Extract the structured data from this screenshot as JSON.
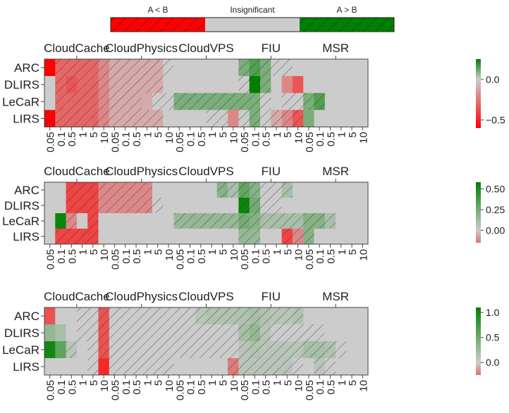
{
  "legend": {
    "items": [
      {
        "label": "A < B",
        "color": "#ff0000",
        "hatched": true
      },
      {
        "label": "Insignificant",
        "color": "#cccccc",
        "hatched": false
      },
      {
        "label": "A > B",
        "color": "#008000",
        "hatched": true
      }
    ]
  },
  "chart_data": [
    {
      "type": "heatmap",
      "rows": [
        "ARC",
        "DLIRS",
        "LeCaR",
        "LIRS"
      ],
      "group_labels": [
        "CloudCache",
        "CloudPhysics",
        "CloudVPS",
        "FIU",
        "MSR"
      ],
      "group_size": 6,
      "column_labels": [
        "0.05",
        "0.1",
        "0.5",
        "1",
        "5",
        "10",
        "0.05",
        "0.1",
        "0.5",
        "1",
        "5",
        "10",
        "0.05",
        "0.1",
        "0.5",
        "1",
        "5",
        "10",
        "0.05",
        "0.1",
        "0.5",
        "1",
        "5",
        "10",
        "0.05",
        "0.1",
        "0.5",
        "1",
        "5",
        "10"
      ],
      "colorbar": {
        "ticks": [
          0.0,
          -0.5
        ],
        "tick_labels": [
          "0.0",
          "−0.5"
        ],
        "vmin": -0.6,
        "vmax": 0.25
      },
      "values": [
        [
          -0.6,
          -0.3,
          -0.3,
          -0.3,
          -0.3,
          -0.2,
          -0.1,
          -0.1,
          -0.1,
          -0.1,
          -0.1,
          0,
          0,
          0,
          0,
          0,
          0,
          0,
          0.1,
          0.15,
          0.1,
          0,
          0,
          0,
          0,
          0,
          0,
          0,
          0,
          0
        ],
        [
          0,
          -0.3,
          -0.35,
          -0.3,
          -0.3,
          -0.2,
          -0.1,
          -0.1,
          -0.1,
          -0.1,
          -0.1,
          0,
          0,
          0,
          0,
          0,
          0,
          0,
          0,
          0.25,
          0.1,
          0,
          -0.2,
          -0.35,
          0,
          0,
          0,
          0,
          0,
          0
        ],
        [
          0,
          -0.3,
          -0.3,
          -0.3,
          -0.3,
          -0.2,
          -0.1,
          -0.1,
          -0.1,
          -0.1,
          0,
          0,
          0.1,
          0.1,
          0.1,
          0.1,
          0.1,
          0.1,
          0.1,
          0.1,
          0,
          0,
          0,
          0,
          0.1,
          0.15,
          0,
          0,
          0,
          0
        ],
        [
          -0.6,
          -0.3,
          -0.3,
          -0.3,
          -0.3,
          -0.2,
          -0.1,
          -0.1,
          -0.1,
          -0.1,
          -0.1,
          0,
          0,
          0,
          0,
          0,
          0,
          -0.2,
          0,
          0.1,
          0,
          -0.1,
          -0.2,
          -0.35,
          0.1,
          0,
          0,
          0,
          0,
          0
        ]
      ],
      "hatch": [
        [
          0,
          1,
          1,
          1,
          1,
          1,
          1,
          1,
          1,
          1,
          1,
          1,
          0,
          0,
          0,
          0,
          0,
          0,
          1,
          1,
          1,
          1,
          1,
          0,
          0,
          0,
          0,
          0,
          0,
          0
        ],
        [
          0,
          1,
          1,
          1,
          1,
          1,
          1,
          1,
          1,
          1,
          1,
          0,
          0,
          0,
          0,
          0,
          0,
          0,
          1,
          1,
          1,
          0,
          0,
          0,
          0,
          0,
          0,
          0,
          0,
          0
        ],
        [
          0,
          1,
          1,
          1,
          1,
          1,
          1,
          1,
          1,
          0,
          1,
          1,
          1,
          1,
          1,
          1,
          1,
          1,
          1,
          1,
          1,
          0,
          1,
          1,
          1,
          1,
          0,
          0,
          0,
          0
        ],
        [
          1,
          1,
          1,
          1,
          1,
          1,
          1,
          1,
          1,
          1,
          1,
          0,
          0,
          0,
          0,
          1,
          1,
          0,
          1,
          1,
          1,
          1,
          1,
          1,
          0,
          0,
          0,
          0,
          0,
          0
        ]
      ]
    },
    {
      "type": "heatmap",
      "rows": [
        "ARC",
        "DLIRS",
        "LeCaR",
        "LIRS"
      ],
      "group_labels": [
        "CloudCache",
        "CloudPhysics",
        "CloudVPS",
        "FIU",
        "MSR"
      ],
      "group_size": 6,
      "column_labels": [
        "0.05",
        "0.1",
        "0.5",
        "1",
        "5",
        "10",
        "0.05",
        "0.1",
        "0.5",
        "1",
        "5",
        "10",
        "0.05",
        "0.1",
        "0.5",
        "1",
        "5",
        "10",
        "0.05",
        "0.1",
        "0.5",
        "1",
        "5",
        "10",
        "0.05",
        "0.1",
        "0.5",
        "1",
        "5",
        "10"
      ],
      "colorbar": {
        "ticks": [
          0.5,
          0.25,
          0.0
        ],
        "tick_labels": [
          "0.50",
          "0.25",
          "0.00"
        ],
        "vmin": -0.15,
        "vmax": 0.58
      },
      "values": [
        [
          0,
          0,
          -0.1,
          -0.1,
          -0.1,
          -0.05,
          -0.05,
          -0.05,
          -0.05,
          -0.05,
          0,
          0,
          0,
          0,
          0,
          0,
          0.2,
          0.1,
          0.3,
          0.2,
          0,
          0,
          0.1,
          0,
          0,
          0,
          0,
          0,
          0,
          0
        ],
        [
          0,
          0,
          -0.1,
          -0.1,
          -0.1,
          -0.05,
          -0.05,
          -0.05,
          -0.05,
          -0.05,
          0,
          0,
          0,
          0,
          0,
          0,
          0,
          0,
          0.55,
          0.25,
          0,
          0,
          0,
          0,
          0,
          0,
          0,
          0,
          0,
          0
        ],
        [
          0,
          0.55,
          -0.05,
          0,
          -0.1,
          0,
          0,
          0,
          0,
          0,
          0,
          0,
          0.15,
          0.15,
          0.15,
          0.15,
          0.15,
          0.15,
          0.25,
          0.2,
          0.1,
          0.1,
          0.1,
          0.1,
          0.2,
          0.2,
          0.1,
          0,
          0,
          0
        ],
        [
          0,
          -0.1,
          -0.1,
          -0.1,
          -0.1,
          0,
          0,
          0,
          0,
          0,
          0,
          0,
          0,
          0,
          0,
          0,
          0,
          0,
          0.15,
          0.15,
          0,
          0,
          -0.1,
          -0.05,
          0.2,
          0,
          0,
          0,
          0,
          0
        ]
      ],
      "hatch": [
        [
          0,
          0,
          1,
          1,
          1,
          1,
          1,
          1,
          1,
          1,
          0,
          0,
          0,
          0,
          0,
          0,
          1,
          1,
          1,
          1,
          1,
          1,
          1,
          0,
          0,
          0,
          0,
          0,
          0,
          0
        ],
        [
          0,
          0,
          1,
          1,
          1,
          1,
          1,
          1,
          1,
          1,
          1,
          0,
          0,
          0,
          0,
          0,
          0,
          0,
          1,
          1,
          1,
          1,
          0,
          0,
          0,
          0,
          0,
          0,
          0,
          0
        ],
        [
          0,
          0,
          1,
          0,
          1,
          0,
          0,
          0,
          0,
          0,
          0,
          0,
          1,
          1,
          1,
          1,
          1,
          1,
          1,
          1,
          1,
          1,
          1,
          1,
          1,
          1,
          1,
          0,
          0,
          0
        ],
        [
          0,
          1,
          1,
          1,
          1,
          0,
          0,
          0,
          0,
          0,
          0,
          0,
          0,
          0,
          0,
          0,
          0,
          0,
          1,
          1,
          0,
          0,
          1,
          1,
          1,
          0,
          0,
          0,
          0,
          0
        ]
      ]
    },
    {
      "type": "heatmap",
      "rows": [
        "ARC",
        "DLIRS",
        "LeCaR",
        "LIRS"
      ],
      "group_labels": [
        "CloudCache",
        "CloudPhysics",
        "CloudVPS",
        "FIU",
        "MSR"
      ],
      "group_size": 6,
      "column_labels": [
        "0.05",
        "0.1",
        "0.5",
        "1",
        "5",
        "10",
        "0.05",
        "0.1",
        "0.5",
        "1",
        "5",
        "10",
        "0.05",
        "0.1",
        "0.5",
        "1",
        "5",
        "10",
        "0.05",
        "0.1",
        "0.5",
        "1",
        "5",
        "10",
        "0.05",
        "0.1",
        "0.5",
        "1",
        "5",
        "10"
      ],
      "colorbar": {
        "ticks": [
          1.0,
          0.5,
          0.0
        ],
        "tick_labels": [
          "1.0",
          "0.5",
          "0.0"
        ],
        "vmin": -0.25,
        "vmax": 1.1
      },
      "values": [
        [
          -0.15,
          0,
          0,
          0,
          0,
          -0.15,
          0,
          0,
          0,
          0,
          0,
          0,
          0,
          0,
          0.1,
          0.15,
          0.15,
          0.15,
          0.15,
          0.2,
          0.15,
          0.1,
          0.1,
          0.15,
          0,
          0,
          0,
          0,
          0,
          0
        ],
        [
          0.3,
          0.2,
          0,
          0,
          0,
          -0.15,
          0,
          0,
          0,
          0,
          0,
          0,
          0,
          0,
          0,
          0,
          0,
          0,
          0.2,
          0.3,
          0.1,
          0,
          0,
          0,
          0,
          0,
          0,
          0,
          0,
          0
        ],
        [
          1.0,
          0.6,
          0.1,
          0,
          0,
          -0.15,
          0,
          0,
          0,
          0,
          0,
          0,
          0,
          0,
          0,
          0,
          0,
          0,
          0.1,
          0.15,
          0.1,
          0.1,
          0.1,
          0.1,
          0.2,
          0.2,
          0.15,
          0,
          0,
          0
        ],
        [
          0,
          0,
          0,
          0,
          0,
          -0.2,
          0,
          0,
          0,
          0,
          0,
          0,
          0,
          0,
          0,
          0,
          0,
          -0.1,
          0.1,
          0.1,
          0.1,
          0.1,
          0.1,
          0,
          0,
          0.1,
          0,
          0,
          0,
          0
        ]
      ],
      "hatch": [
        [
          0,
          0,
          0,
          1,
          1,
          1,
          1,
          1,
          1,
          1,
          1,
          1,
          1,
          1,
          1,
          1,
          1,
          1,
          1,
          1,
          1,
          1,
          1,
          1,
          0,
          0,
          0,
          0,
          0,
          0
        ],
        [
          0,
          0,
          0,
          1,
          1,
          1,
          1,
          1,
          1,
          1,
          1,
          1,
          1,
          1,
          1,
          1,
          1,
          1,
          1,
          1,
          1,
          1,
          1,
          1,
          1,
          1,
          0,
          0,
          0,
          0
        ],
        [
          0,
          0,
          1,
          0,
          1,
          1,
          1,
          1,
          1,
          1,
          1,
          1,
          1,
          1,
          1,
          1,
          1,
          1,
          1,
          1,
          1,
          1,
          1,
          1,
          1,
          1,
          1,
          1,
          0,
          0
        ],
        [
          0,
          0,
          0,
          0,
          1,
          0,
          1,
          1,
          1,
          1,
          1,
          1,
          0,
          0,
          0,
          0,
          0,
          1,
          1,
          1,
          1,
          1,
          1,
          1,
          0,
          1,
          1,
          0,
          0,
          0
        ]
      ]
    }
  ]
}
